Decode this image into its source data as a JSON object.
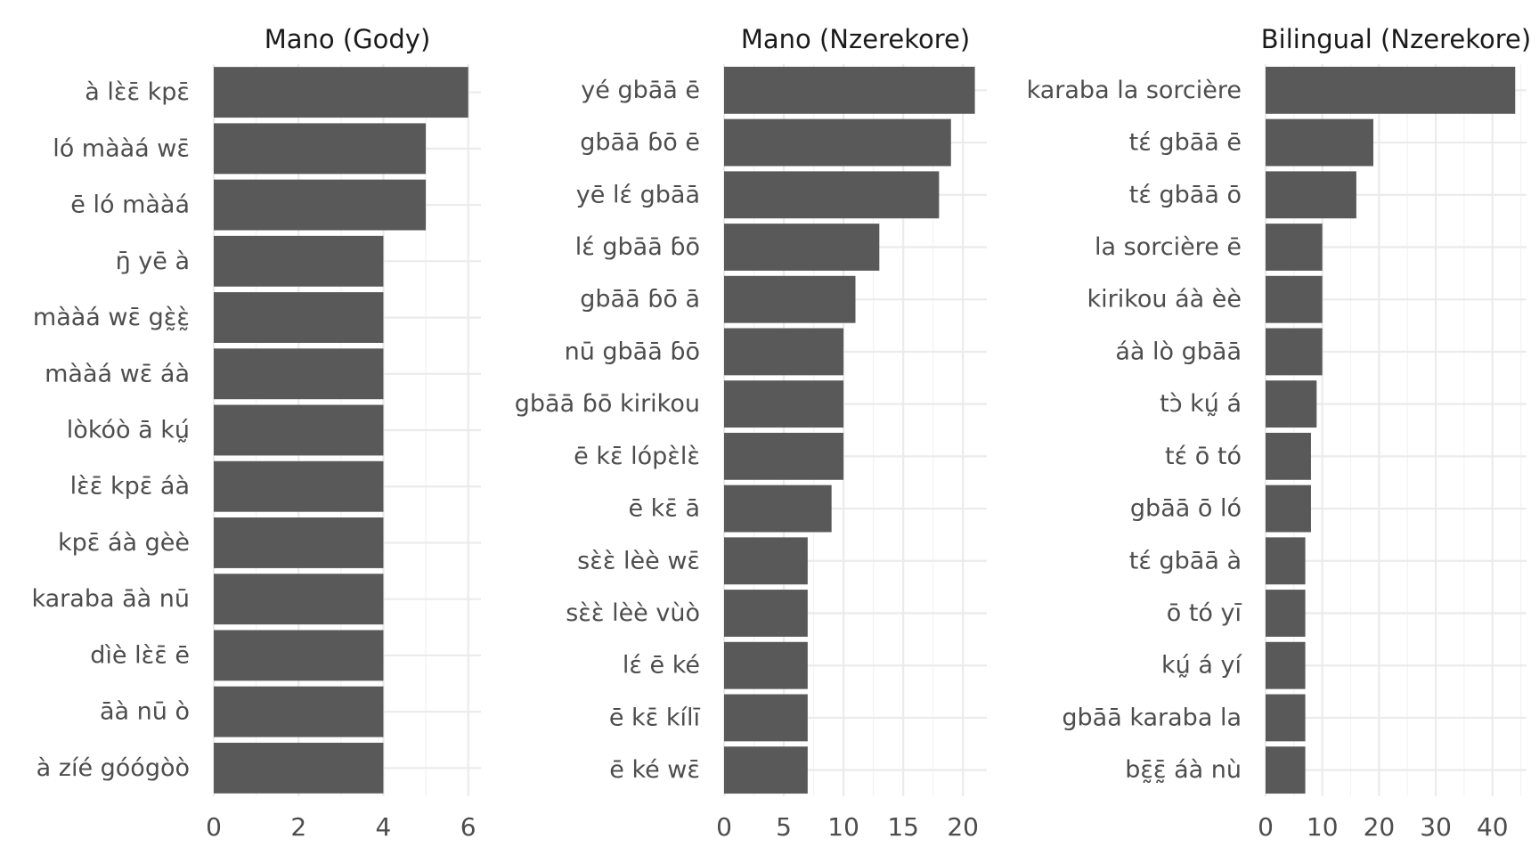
{
  "chart_data": [
    {
      "type": "bar",
      "orientation": "horizontal",
      "title": "Mano (Gody)",
      "xlabel": "",
      "ylabel": "",
      "xlim": [
        0,
        6.3
      ],
      "x_ticks": [
        0,
        2,
        4,
        6
      ],
      "grid": true,
      "bar_color": "#595959",
      "categories": [
        "à lɛ̀ɛ̄ kpɛ̄",
        "ló mààá wɛ̄",
        "ē ló mààá",
        "ŋ̄ yē à",
        "mààá wɛ̄ gɛ̰̀ɛ̰̀",
        "mààá wɛ̄ áà",
        "lòkóò ā kṵ́",
        "lɛ̀ɛ̄ kpɛ̄ áà",
        "kpɛ̄ áà gèè",
        "karaba āà nū",
        "dìè lɛ̀ɛ̄ ē",
        "āà nū ò",
        "à zíé góógòò"
      ],
      "values": [
        6,
        5,
        5,
        4,
        4,
        4,
        4,
        4,
        4,
        4,
        4,
        4,
        4
      ]
    },
    {
      "type": "bar",
      "orientation": "horizontal",
      "title": "Mano (Nzerekore)",
      "xlabel": "",
      "ylabel": "",
      "xlim": [
        0,
        22
      ],
      "x_ticks": [
        0,
        5,
        10,
        15,
        20
      ],
      "grid": true,
      "bar_color": "#595959",
      "categories": [
        "yé gbāā ē",
        "gbāā ɓō ē",
        "yē lɛ́ gbāā",
        "lɛ́ gbāā ɓō",
        "gbāā ɓō ā",
        "nū gbāā ɓō",
        "gbāā ɓō kirikou",
        "ē kɛ̄ lópɛ̀lɛ̀",
        "ē kɛ̄ ā",
        "sɛ̀ɛ̀ lèè wɛ̄",
        "sɛ̀ɛ̀ lèè vùò",
        "lɛ́ ē ké",
        "ē kɛ̄ kílī",
        "ē ké wɛ̄"
      ],
      "values": [
        21,
        19,
        18,
        13,
        11,
        10,
        10,
        10,
        9,
        7,
        7,
        7,
        7,
        7
      ]
    },
    {
      "type": "bar",
      "orientation": "horizontal",
      "title": "Bilingual (Nzerekore)",
      "xlabel": "",
      "ylabel": "",
      "xlim": [
        0,
        46
      ],
      "x_ticks": [
        0,
        10,
        20,
        30,
        40
      ],
      "grid": true,
      "bar_color": "#595959",
      "categories": [
        "karaba la sorcière",
        "tɛ́ gbāā ē",
        "tɛ́ gbāā ō",
        "la sorcière ē",
        "kirikou áà èè",
        "áà lò gbāā",
        "tɔ̀ kṵ́ á",
        "tɛ́ ō tó",
        "gbāā ō ló",
        "tɛ́ gbāā à",
        "ō tó yī",
        "kṵ́ á yí",
        "gbāā karaba la",
        "bɛ̰̄ɛ̰̄ áà nù"
      ],
      "values": [
        44,
        19,
        16,
        10,
        10,
        10,
        9,
        8,
        8,
        7,
        7,
        7,
        7,
        7
      ]
    }
  ]
}
